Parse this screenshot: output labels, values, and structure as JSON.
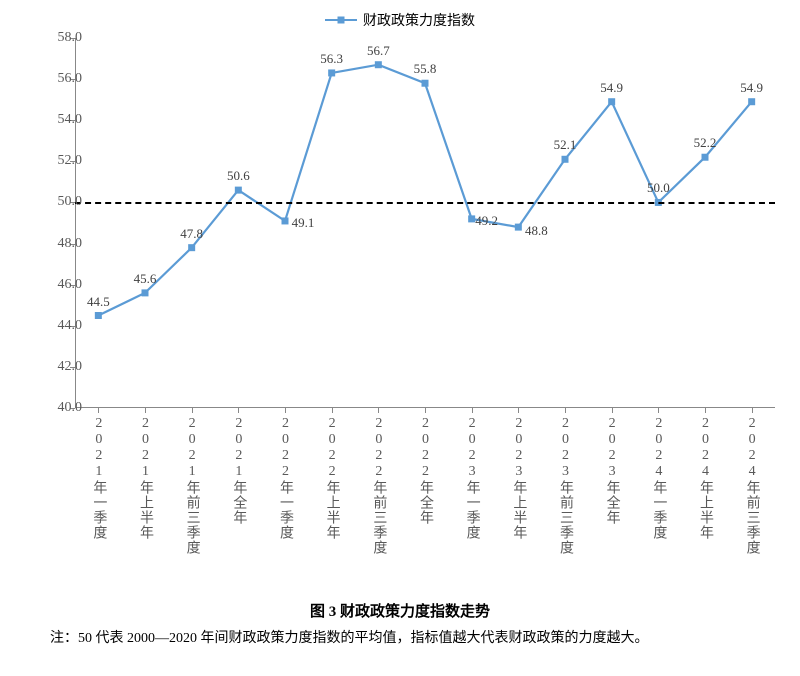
{
  "chart": {
    "type": "line",
    "legend_label": "财政政策力度指数",
    "categories": [
      "2021年一季度",
      "2021年上半年",
      "2021年前三季度",
      "2021年全年",
      "2022年一季度",
      "2022年上半年",
      "2022年前三季度",
      "2022年全年",
      "2023年一季度",
      "2023年上半年",
      "2023年前三季度",
      "2023年全年",
      "2024年一季度",
      "2024年上半年",
      "2024年前三季度"
    ],
    "values": [
      44.5,
      45.6,
      47.8,
      50.6,
      49.1,
      56.3,
      56.7,
      55.8,
      49.2,
      48.8,
      52.1,
      54.9,
      50.0,
      52.2,
      54.9
    ],
    "data_label_texts": [
      "44.5",
      "45.6",
      "47.8",
      "50.6",
      "49.1",
      "56.3",
      "56.7",
      "55.8",
      "49.2",
      "48.8",
      "52.1",
      "54.9",
      "50.0",
      "52.2",
      "54.9"
    ],
    "ylim": [
      40.0,
      58.0
    ],
    "ytick_step": 2.0,
    "yticks": [
      "40.0",
      "42.0",
      "44.0",
      "46.0",
      "48.0",
      "50.0",
      "52.0",
      "54.0",
      "56.0",
      "58.0"
    ],
    "reference_value": 50.0,
    "line_color": "#5b9bd5",
    "marker_color": "#5b9bd5",
    "marker_size": 7,
    "line_width": 2.2,
    "background_color": "#ffffff",
    "axis_color": "#888888",
    "tick_label_color": "#595959",
    "data_label_color": "#404040",
    "tick_label_fontsize": 14,
    "data_label_fontsize": 13
  },
  "caption": "图 3  财政政策力度指数走势",
  "note": "注：50 代表 2000—2020 年间财政政策力度指数的平均值，指标值越大代表财政政策的力度越大。"
}
